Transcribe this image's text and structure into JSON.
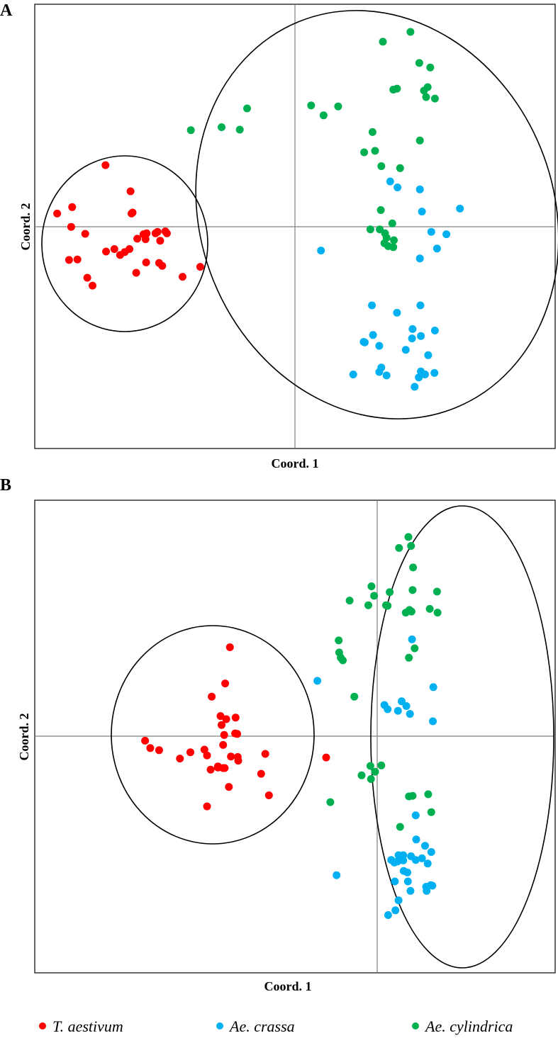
{
  "legend": [
    {
      "label": "T. aestivum",
      "color": "#ff0000"
    },
    {
      "label": "Ae. crassa",
      "color": "#00b0f0"
    },
    {
      "label": "Ae. cylindrica",
      "color": "#00b050"
    }
  ],
  "chart_data": [
    {
      "type": "scatter",
      "panel": "A",
      "xlabel": "Coord. 1",
      "ylabel": "Coord. 2",
      "xlim": [
        -0.5,
        0.5
      ],
      "ylim": [
        -0.45,
        0.45
      ],
      "grid": false,
      "series": [
        {
          "name": "T. aestivum",
          "color": "#ff0000",
          "points": [
            [
              -0.364,
              0.124
            ],
            [
              -0.316,
              0.071
            ],
            [
              -0.314,
              0.026
            ],
            [
              -0.457,
              0.026
            ],
            [
              -0.428,
              0.039
            ],
            [
              -0.403,
              -0.015
            ],
            [
              -0.43,
              -0.001
            ],
            [
              -0.418,
              -0.067
            ],
            [
              -0.434,
              -0.068
            ],
            [
              -0.399,
              -0.104
            ],
            [
              -0.389,
              -0.12
            ],
            [
              -0.363,
              -0.051
            ],
            [
              -0.347,
              -0.046
            ],
            [
              -0.327,
              -0.052
            ],
            [
              -0.336,
              -0.058
            ],
            [
              -0.318,
              -0.046
            ],
            [
              -0.291,
              -0.016
            ],
            [
              -0.285,
              -0.014
            ],
            [
              -0.287,
              -0.026
            ],
            [
              -0.303,
              -0.025
            ],
            [
              -0.268,
              -0.014
            ],
            [
              -0.264,
              -0.011
            ],
            [
              -0.249,
              -0.01
            ],
            [
              -0.246,
              -0.014
            ],
            [
              -0.259,
              -0.029
            ],
            [
              -0.305,
              -0.094
            ],
            [
              -0.286,
              -0.073
            ],
            [
              -0.261,
              -0.074
            ],
            [
              -0.255,
              -0.08
            ],
            [
              -0.216,
              -0.102
            ],
            [
              -0.182,
              -0.082
            ],
            [
              -0.312,
              0.028
            ]
          ]
        },
        {
          "name": "Ae. crassa",
          "color": "#00b0f0",
          "points": [
            [
              0.183,
              0.091
            ],
            [
              0.197,
              0.079
            ],
            [
              0.24,
              0.075
            ],
            [
              0.244,
              0.03
            ],
            [
              0.317,
              0.036
            ],
            [
              0.262,
              -0.011
            ],
            [
              0.291,
              -0.016
            ],
            [
              0.273,
              -0.045
            ],
            [
              0.24,
              -0.065
            ],
            [
              0.05,
              -0.049
            ],
            [
              0.148,
              -0.16
            ],
            [
              0.241,
              -0.16
            ],
            [
              0.196,
              -0.175
            ],
            [
              0.226,
              -0.208
            ],
            [
              0.242,
              -0.222
            ],
            [
              0.225,
              -0.227
            ],
            [
              0.269,
              -0.211
            ],
            [
              0.15,
              -0.22
            ],
            [
              0.132,
              -0.234
            ],
            [
              0.162,
              -0.242
            ],
            [
              0.213,
              -0.25
            ],
            [
              0.256,
              -0.261
            ],
            [
              0.166,
              -0.286
            ],
            [
              0.176,
              -0.302
            ],
            [
              0.162,
              -0.295
            ],
            [
              0.242,
              -0.294
            ],
            [
              0.238,
              -0.306
            ],
            [
              0.25,
              -0.3
            ],
            [
              0.268,
              -0.297
            ],
            [
              0.112,
              -0.3
            ],
            [
              0.23,
              -0.325
            ],
            [
              0.134,
              -0.235
            ]
          ]
        },
        {
          "name": "Ae. cylindrica",
          "color": "#00b050",
          "points": [
            [
              0.222,
              0.394
            ],
            [
              0.169,
              0.374
            ],
            [
              0.239,
              0.331
            ],
            [
              0.26,
              0.322
            ],
            [
              0.255,
              0.282
            ],
            [
              0.248,
              0.275
            ],
            [
              0.196,
              0.279
            ],
            [
              0.189,
              0.277
            ],
            [
              0.269,
              0.259
            ],
            [
              0.252,
              0.262
            ],
            [
              0.031,
              0.245
            ],
            [
              0.083,
              0.243
            ],
            [
              0.055,
              0.225
            ],
            [
              -0.092,
              0.239
            ],
            [
              -0.141,
              0.201
            ],
            [
              -0.2,
              0.195
            ],
            [
              -0.106,
              0.196
            ],
            [
              0.149,
              0.191
            ],
            [
              0.24,
              0.174
            ],
            [
              0.154,
              0.153
            ],
            [
              0.133,
              0.15
            ],
            [
              0.166,
              0.122
            ],
            [
              0.202,
              0.118
            ],
            [
              0.165,
              0.033
            ],
            [
              0.187,
              0.006
            ],
            [
              0.163,
              -0.006
            ],
            [
              0.145,
              -0.006
            ],
            [
              0.173,
              -0.014
            ],
            [
              0.176,
              -0.023
            ],
            [
              0.19,
              -0.028
            ],
            [
              0.172,
              -0.034
            ],
            [
              0.179,
              -0.04
            ],
            [
              0.189,
              -0.042
            ]
          ]
        }
      ]
    },
    {
      "type": "scatter",
      "panel": "B",
      "xlabel": "Coord. 1",
      "ylabel": "Coord. 2",
      "xlim": [
        -0.5,
        0.5
      ],
      "ylim": [
        -0.45,
        0.45
      ],
      "grid": false,
      "series": [
        {
          "name": "T. aestivum",
          "color": "#ff0000",
          "points": [
            [
              -0.125,
              0.17
            ],
            [
              -0.134,
              0.101
            ],
            [
              -0.16,
              0.076
            ],
            [
              -0.143,
              0.039
            ],
            [
              -0.132,
              0.033
            ],
            [
              -0.114,
              0.036
            ],
            [
              -0.141,
              0.022
            ],
            [
              -0.115,
              0.006
            ],
            [
              -0.111,
              0.005
            ],
            [
              -0.136,
              0.003
            ],
            [
              -0.138,
              -0.016
            ],
            [
              -0.278,
              -0.022
            ],
            [
              -0.261,
              -0.026
            ],
            [
              -0.288,
              -0.008
            ],
            [
              -0.174,
              -0.025
            ],
            [
              -0.201,
              -0.03
            ],
            [
              -0.169,
              -0.036
            ],
            [
              -0.221,
              -0.042
            ],
            [
              -0.123,
              -0.038
            ],
            [
              -0.11,
              -0.039
            ],
            [
              -0.057,
              -0.033
            ],
            [
              -0.135,
              -0.06
            ],
            [
              -0.148,
              -0.059
            ],
            [
              -0.138,
              -0.06
            ],
            [
              -0.109,
              -0.046
            ],
            [
              -0.065,
              -0.071
            ],
            [
              -0.162,
              -0.063
            ],
            [
              -0.148,
              -0.057
            ],
            [
              -0.127,
              -0.096
            ],
            [
              0.06,
              -0.04
            ],
            [
              -0.05,
              -0.112
            ],
            [
              -0.169,
              -0.133
            ]
          ]
        },
        {
          "name": "Ae. crassa",
          "color": "#00b0f0",
          "points": [
            [
              0.043,
              0.106
            ],
            [
              0.225,
              0.185
            ],
            [
              0.205,
              0.067
            ],
            [
              0.214,
              0.058
            ],
            [
              0.172,
              0.06
            ],
            [
              0.178,
              0.052
            ],
            [
              0.221,
              0.043
            ],
            [
              0.266,
              0.094
            ],
            [
              0.265,
              0.029
            ],
            [
              0.198,
              0.049
            ],
            [
              0.232,
              -0.15
            ],
            [
              0.233,
              -0.196
            ],
            [
              0.25,
              -0.208
            ],
            [
              0.262,
              -0.22
            ],
            [
              0.223,
              -0.228
            ],
            [
              0.232,
              -0.235
            ],
            [
              0.208,
              -0.226
            ],
            [
              0.208,
              -0.236
            ],
            [
              0.199,
              -0.226
            ],
            [
              0.197,
              -0.238
            ],
            [
              0.185,
              -0.235
            ],
            [
              0.191,
              -0.24
            ],
            [
              0.209,
              -0.256
            ],
            [
              0.244,
              -0.232
            ],
            [
              0.255,
              -0.242
            ],
            [
              0.08,
              -0.264
            ],
            [
              0.192,
              -0.276
            ],
            [
              0.217,
              -0.276
            ],
            [
              0.252,
              -0.286
            ],
            [
              0.261,
              -0.283
            ],
            [
              0.264,
              -0.284
            ],
            [
              0.222,
              -0.294
            ],
            [
              0.253,
              -0.294
            ],
            [
              0.199,
              -0.312
            ],
            [
              0.193,
              -0.331
            ],
            [
              0.179,
              -0.34
            ],
            [
              0.216,
              -0.259
            ]
          ]
        },
        {
          "name": "Ae. cylindrica",
          "color": "#00b050",
          "points": [
            [
              0.218,
              0.38
            ],
            [
              0.223,
              0.363
            ],
            [
              0.2,
              0.359
            ],
            [
              0.227,
              0.322
            ],
            [
              0.147,
              0.286
            ],
            [
              0.182,
              0.275
            ],
            [
              0.226,
              0.279
            ],
            [
              0.152,
              0.268
            ],
            [
              0.273,
              0.276
            ],
            [
              0.105,
              0.259
            ],
            [
              0.141,
              0.25
            ],
            [
              0.22,
              0.241
            ],
            [
              0.259,
              0.243
            ],
            [
              0.175,
              0.25
            ],
            [
              0.178,
              0.249
            ],
            [
              0.274,
              0.236
            ],
            [
              0.213,
              0.236
            ],
            [
              0.224,
              0.238
            ],
            [
              0.084,
              0.183
            ],
            [
              0.085,
              0.16
            ],
            [
              0.23,
              0.168
            ],
            [
              0.088,
              0.15
            ],
            [
              0.219,
              0.15
            ],
            [
              0.092,
              0.145
            ],
            [
              0.114,
              0.076
            ],
            [
              0.145,
              -0.056
            ],
            [
              0.154,
              -0.067
            ],
            [
              0.166,
              -0.055
            ],
            [
              0.128,
              -0.074
            ],
            [
              0.146,
              -0.081
            ],
            [
              0.226,
              -0.113
            ],
            [
              0.256,
              -0.11
            ],
            [
              0.068,
              -0.125
            ],
            [
              0.262,
              -0.144
            ],
            [
              0.202,
              -0.172
            ],
            [
              0.219,
              -0.114
            ]
          ]
        }
      ]
    }
  ]
}
